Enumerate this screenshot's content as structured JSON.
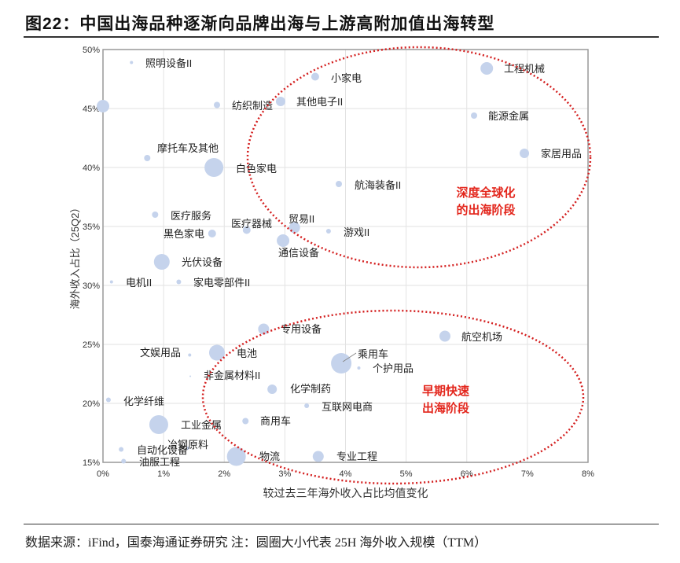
{
  "title": "图22：中国出海品种逐渐向品牌出海与上游高附加值出海转型",
  "footer": "数据来源：iFind，国泰海通证券研究   注：圆圈大小代表 25H 海外收入规模（TTM）",
  "chart_data": {
    "type": "scatter",
    "title": "图22：中国出海品种逐渐向品牌出海与上游高附加值出海转型",
    "xlabel": "较过去三年海外收入占比均值变化",
    "ylabel": "海外收入占比（25Q2）",
    "xlim": [
      0,
      8
    ],
    "ylim": [
      15,
      50
    ],
    "x_ticks": [
      "0%",
      "1%",
      "2%",
      "3%",
      "4%",
      "5%",
      "6%",
      "7%",
      "8%"
    ],
    "y_ticks": [
      "15%",
      "20%",
      "25%",
      "30%",
      "35%",
      "40%",
      "45%",
      "50%"
    ],
    "grid": true,
    "bubble_color": "#c5d3ec",
    "size_note": "圆圈大小代表 25H 海外收入规模（TTM）",
    "annotations": [
      {
        "text_lines": [
          "深度全球化",
          "的出海阶段"
        ],
        "color": "#e3261c"
      },
      {
        "text_lines": [
          "早期快速",
          "出海阶段"
        ],
        "color": "#e3261c"
      }
    ],
    "points": [
      {
        "name": "照明设备II",
        "x": 0.47,
        "y": 48.9,
        "size": 2
      },
      {
        "name": "",
        "x": 0.0,
        "y": 45.2,
        "size": 8
      },
      {
        "name": "纺织制造",
        "x": 1.88,
        "y": 45.3,
        "size": 4
      },
      {
        "name": "其他电子II",
        "x": 2.93,
        "y": 45.6,
        "size": 6
      },
      {
        "name": "小家电",
        "x": 3.5,
        "y": 47.7,
        "size": 5
      },
      {
        "name": "工程机械",
        "x": 6.33,
        "y": 48.4,
        "size": 8
      },
      {
        "name": "能源金属",
        "x": 6.12,
        "y": 44.4,
        "size": 4
      },
      {
        "name": "家居用品",
        "x": 6.95,
        "y": 41.2,
        "size": 6
      },
      {
        "name": "摩托车及其他",
        "x": 0.73,
        "y": 40.8,
        "size": 4
      },
      {
        "name": "白色家电",
        "x": 1.83,
        "y": 40.0,
        "size": 12
      },
      {
        "name": "航海装备II",
        "x": 3.89,
        "y": 38.6,
        "size": 4
      },
      {
        "name": "医疗服务",
        "x": 0.86,
        "y": 36.0,
        "size": 4
      },
      {
        "name": "黑色家电",
        "x": 1.8,
        "y": 34.4,
        "size": 5
      },
      {
        "name": "医疗器械",
        "x": 2.37,
        "y": 34.7,
        "size": 5
      },
      {
        "name": "贸易II",
        "x": 3.16,
        "y": 34.9,
        "size": 7
      },
      {
        "name": "通信设备",
        "x": 2.97,
        "y": 33.8,
        "size": 8
      },
      {
        "name": "游戏II",
        "x": 3.72,
        "y": 34.6,
        "size": 3
      },
      {
        "name": "光伏设备",
        "x": 0.97,
        "y": 32.0,
        "size": 10
      },
      {
        "name": "电机II",
        "x": 0.14,
        "y": 30.3,
        "size": 2
      },
      {
        "name": "家电零部件II",
        "x": 1.25,
        "y": 30.3,
        "size": 3
      },
      {
        "name": "专用设备",
        "x": 2.65,
        "y": 26.3,
        "size": 7
      },
      {
        "name": "文娱用品",
        "x": 1.43,
        "y": 24.1,
        "size": 2
      },
      {
        "name": "电池",
        "x": 1.88,
        "y": 24.3,
        "size": 10
      },
      {
        "name": "乘用车",
        "x": 3.93,
        "y": 23.4,
        "size": 13
      },
      {
        "name": "个护用品",
        "x": 4.22,
        "y": 23.0,
        "size": 2
      },
      {
        "name": "航空机场",
        "x": 5.64,
        "y": 25.7,
        "size": 7
      },
      {
        "name": "非金属材料II",
        "x": 1.44,
        "y": 22.3,
        "size": 1
      },
      {
        "name": "化学制药",
        "x": 2.79,
        "y": 21.2,
        "size": 6
      },
      {
        "name": "化学纤维",
        "x": 0.09,
        "y": 20.3,
        "size": 3
      },
      {
        "name": "互联网电商",
        "x": 3.36,
        "y": 19.8,
        "size": 3
      },
      {
        "name": "工业金属",
        "x": 0.92,
        "y": 18.2,
        "size": 12
      },
      {
        "name": "商用车",
        "x": 2.35,
        "y": 18.5,
        "size": 4
      },
      {
        "name": "自动化设备",
        "x": 0.3,
        "y": 16.1,
        "size": 3
      },
      {
        "name": "冶钢原料",
        "x": 1.4,
        "y": 16.2,
        "size": 2
      },
      {
        "name": "油服工程",
        "x": 0.34,
        "y": 15.1,
        "size": 3
      },
      {
        "name": "物流",
        "x": 2.2,
        "y": 15.5,
        "size": 12
      },
      {
        "name": "专业工程",
        "x": 3.55,
        "y": 15.5,
        "size": 7
      }
    ]
  }
}
